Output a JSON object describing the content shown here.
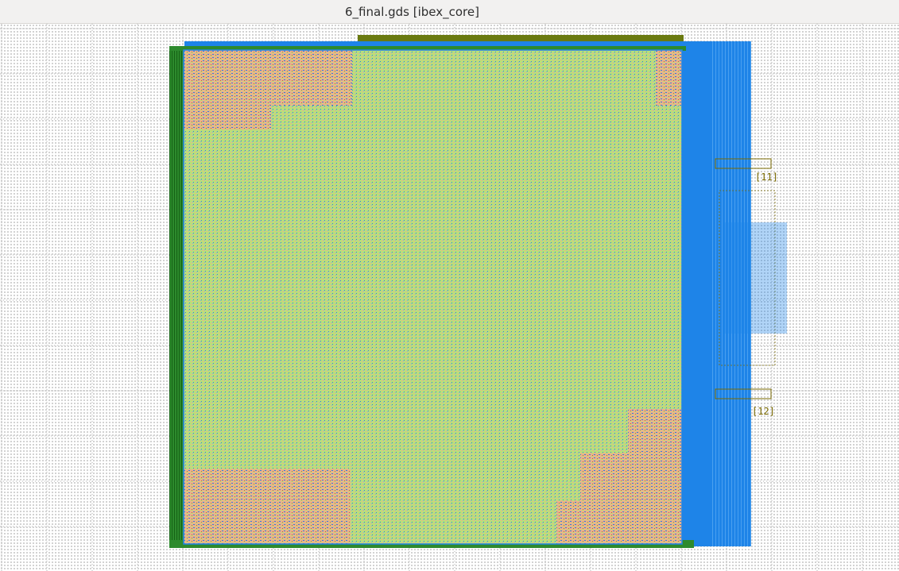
{
  "window": {
    "title": "6_final.gds [ibex_core]"
  },
  "canvas": {
    "background": "#ffffff",
    "grid_dot_color": "#a9a9a9"
  },
  "layout": {
    "core_fill_color": "#b8e07a",
    "core_std_cell_color": "#e8b48a",
    "power_ring_color": "#1a7a1a",
    "io_pin_color": "#1e84e8",
    "pin_label_color": "#7a6a00",
    "pin_labels": [
      {
        "text": "[11]"
      },
      {
        "text": "[12]"
      }
    ]
  },
  "icons": {
    "layout_view": "gds-layout-icon"
  }
}
